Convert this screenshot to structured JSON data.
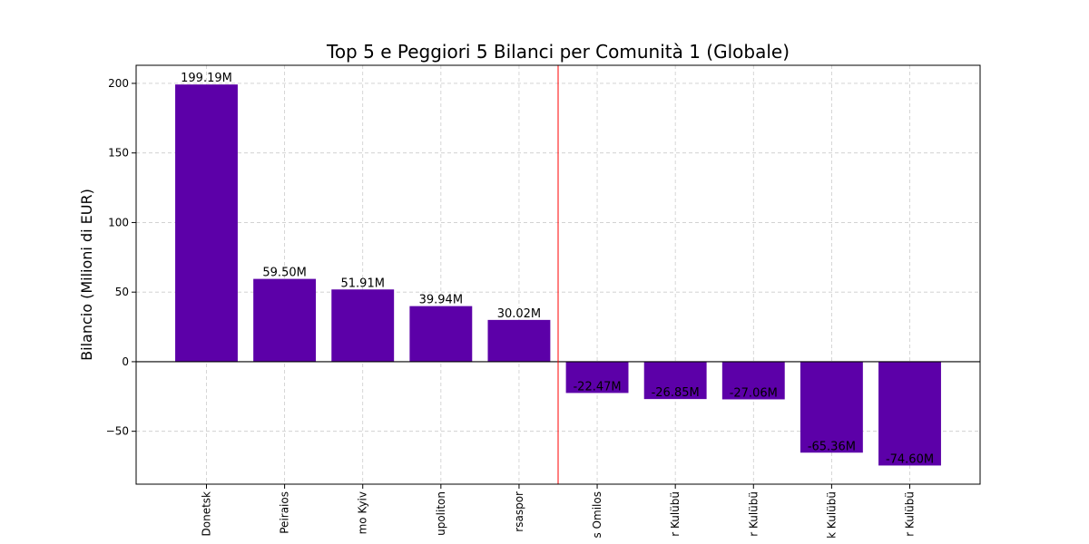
{
  "chart_data": {
    "type": "bar",
    "title": "Top 5 e Peggiori 5 Bilanci per Comunità 1 (Globale)",
    "xlabel": "",
    "ylabel": "Bilancio (Milioni di EUR)",
    "categories": [
      "Donetsk",
      "Peiraios",
      "mo Kyiv",
      "upoliton",
      "rsaspor",
      "s Omilos",
      "r Kulübü",
      "r Kulübü",
      "k Kulübü",
      "r Kulübü"
    ],
    "values": [
      199.19,
      59.5,
      51.91,
      39.94,
      30.02,
      -22.47,
      -26.85,
      -27.06,
      -65.36,
      -74.6
    ],
    "data_labels": [
      "199.19M",
      "59.50M",
      "51.91M",
      "39.94M",
      "30.02M",
      "-22.47M",
      "-26.85M",
      "-27.06M",
      "-65.36M",
      "-74.60M"
    ],
    "ylim": [
      -88,
      213
    ],
    "yticks": [
      -50,
      0,
      50,
      100,
      150,
      200
    ],
    "ytick_labels": [
      "−50",
      "0",
      "50",
      "100",
      "150",
      "200"
    ],
    "grid": true,
    "bar_color": "#5c00a8",
    "separator_color": "#ff0000",
    "separator_after_index": 4,
    "zero_line_color": "#000000"
  }
}
